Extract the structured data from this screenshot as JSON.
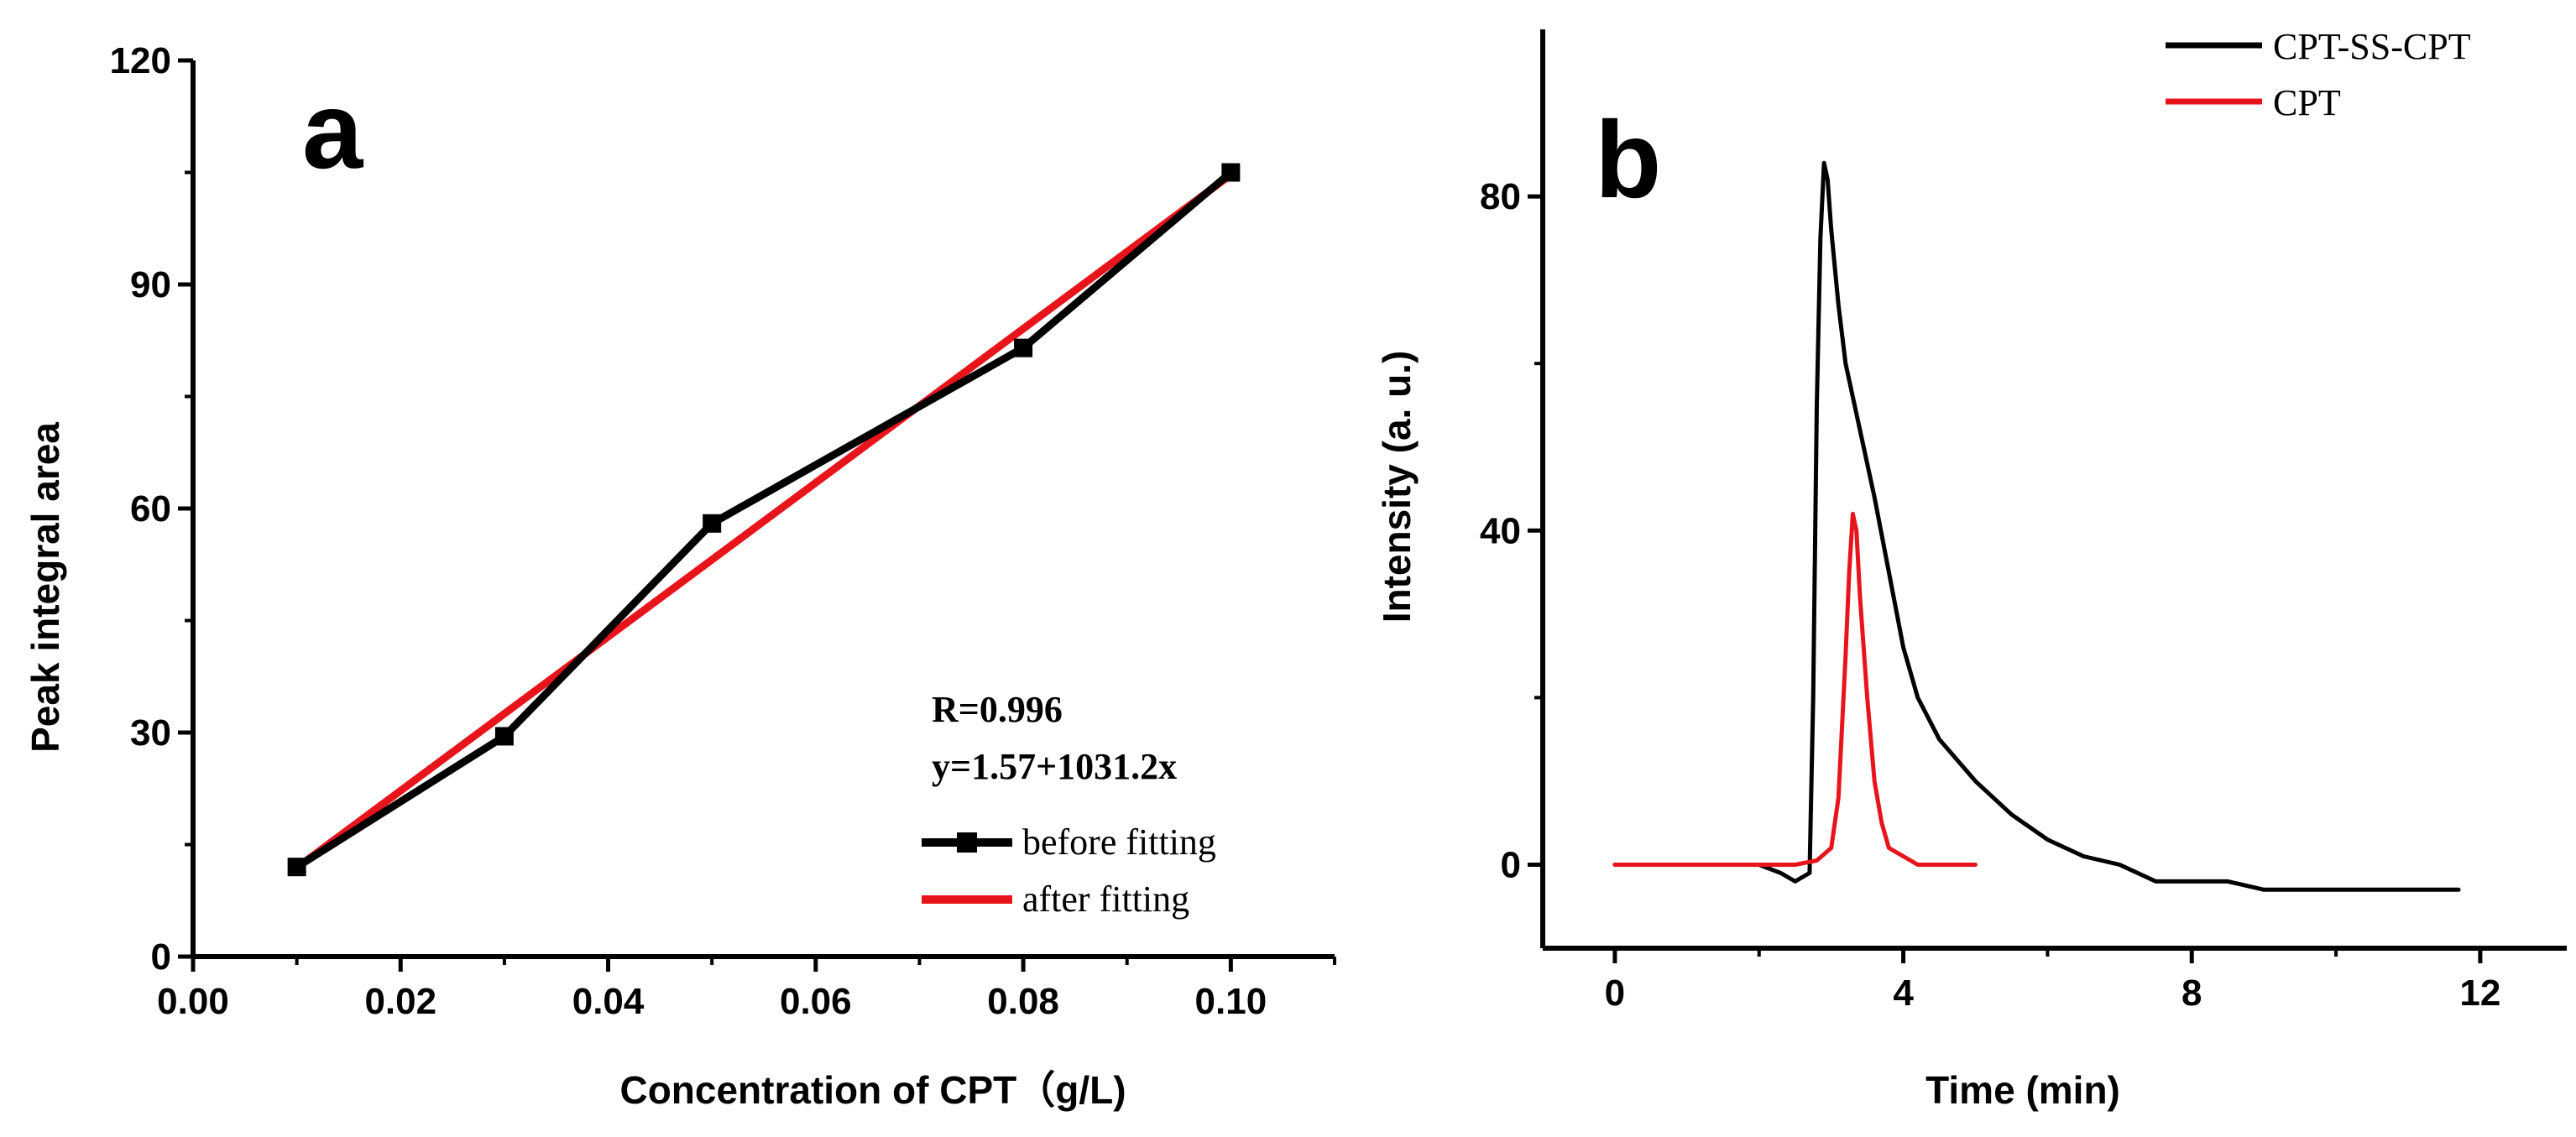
{
  "chart_data": [
    {
      "panel": "a",
      "type": "line",
      "xlabel": "Concentration of CPT（g/L)",
      "ylabel": "Peak integral area",
      "xlim": [
        0.0,
        0.11
      ],
      "ylim": [
        0,
        120
      ],
      "x_ticks": [
        "0.00",
        "0.02",
        "0.04",
        "0.06",
        "0.08",
        "0.10"
      ],
      "y_ticks": [
        "0",
        "30",
        "60",
        "90",
        "120"
      ],
      "annotations": [
        "R=0.996",
        "y=1.57+1031.2x"
      ],
      "legend_position": "lower-right",
      "series": [
        {
          "name": "before fitting",
          "color": "#000000",
          "marker": "square",
          "x": [
            0.01,
            0.03,
            0.05,
            0.08,
            0.1
          ],
          "y": [
            12,
            29.5,
            58,
            81.5,
            105
          ]
        },
        {
          "name": "after fitting",
          "color": "#e8141b",
          "marker": "none",
          "x": [
            0.01,
            0.1
          ],
          "y": [
            11.9,
            104.7
          ]
        }
      ]
    },
    {
      "panel": "b",
      "type": "line",
      "xlabel": "Time (min)",
      "ylabel": "Intensity (a. u.)",
      "xlim": [
        -1.0,
        13.2
      ],
      "ylim": [
        -10,
        100
      ],
      "x_ticks": [
        "0",
        "4",
        "8",
        "12"
      ],
      "y_ticks": [
        "0",
        "40",
        "80"
      ],
      "legend_position": "top-right",
      "series": [
        {
          "name": "CPT-SS-CPT",
          "color": "#000000",
          "x": [
            0,
            0.5,
            1.0,
            1.5,
            2.0,
            2.3,
            2.5,
            2.7,
            2.75,
            2.8,
            2.85,
            2.9,
            2.95,
            3.0,
            3.1,
            3.2,
            3.4,
            3.6,
            3.8,
            4.0,
            4.2,
            4.5,
            4.8,
            5.0,
            5.5,
            6.0,
            6.5,
            7.0,
            7.5,
            8.0,
            8.5,
            9.0,
            9.5,
            10.0,
            10.5,
            11.0,
            11.7
          ],
          "y": [
            0,
            0,
            0,
            0,
            0,
            -1,
            -2,
            -1,
            20,
            55,
            75,
            84,
            82,
            76,
            67,
            60,
            52,
            44,
            35,
            26,
            20,
            15,
            12,
            10,
            6,
            3,
            1,
            0,
            -2,
            -2,
            -2,
            -3,
            -3,
            -3,
            -3,
            -3,
            -3
          ]
        },
        {
          "name": "CPT",
          "color": "#e8141b",
          "x": [
            0,
            0.5,
            1.0,
            1.5,
            2.0,
            2.5,
            2.8,
            3.0,
            3.1,
            3.2,
            3.25,
            3.3,
            3.35,
            3.4,
            3.5,
            3.6,
            3.7,
            3.8,
            4.0,
            4.2,
            4.5,
            5.0
          ],
          "y": [
            0,
            0,
            0,
            0,
            0,
            0,
            0.5,
            2,
            8,
            25,
            35,
            42,
            40,
            32,
            20,
            10,
            5,
            2,
            1,
            0,
            0,
            0
          ]
        }
      ]
    }
  ]
}
